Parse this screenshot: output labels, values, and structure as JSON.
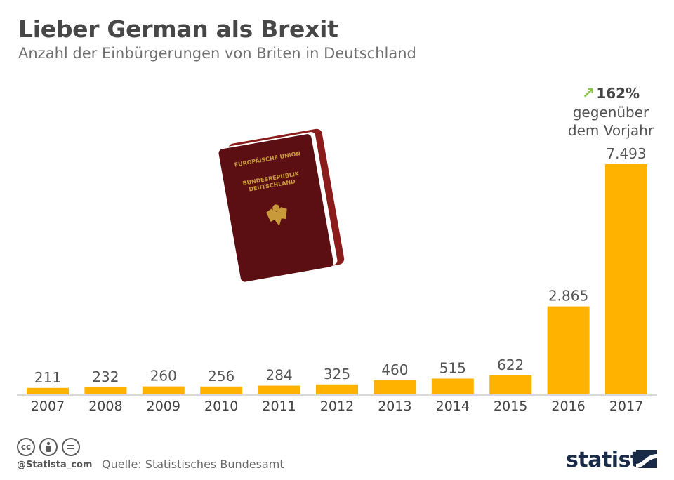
{
  "header": {
    "title": "Lieber German als Brexit",
    "subtitle": "Anzahl der Einbürgerungen von Briten in Deutschland"
  },
  "passport": {
    "line1": "EUROPÄISCHE UNION",
    "line2": "BUNDESREPUBLIK",
    "line3": "DEUTSCHLAND"
  },
  "annotation": {
    "percent": "162%",
    "line1": "gegenüber",
    "line2": "dem Vorjahr",
    "arrow_icon": "arrow-up-right-icon",
    "arrow_color": "#8cc34a"
  },
  "chart_data": {
    "type": "bar",
    "title": "Lieber German als Brexit",
    "subtitle": "Anzahl der Einbürgerungen von Briten in Deutschland",
    "categories": [
      "2007",
      "2008",
      "2009",
      "2010",
      "2011",
      "2012",
      "2013",
      "2014",
      "2015",
      "2016",
      "2017"
    ],
    "values": [
      211,
      232,
      260,
      256,
      284,
      325,
      460,
      515,
      622,
      2865,
      7493
    ],
    "value_labels": [
      "211",
      "232",
      "260",
      "256",
      "284",
      "325",
      "460",
      "515",
      "622",
      "2.865",
      "7.493"
    ],
    "xlabel": "",
    "ylabel": "",
    "ylim": [
      0,
      7493
    ],
    "grid": false,
    "bar_color": "#ffb300"
  },
  "footer": {
    "handle": "@Statista_com",
    "source": "Quelle: Statistisches Bundesamt",
    "brand": "statista",
    "license_icons": [
      "cc-icon",
      "attribution-icon",
      "no-derivatives-icon"
    ]
  }
}
